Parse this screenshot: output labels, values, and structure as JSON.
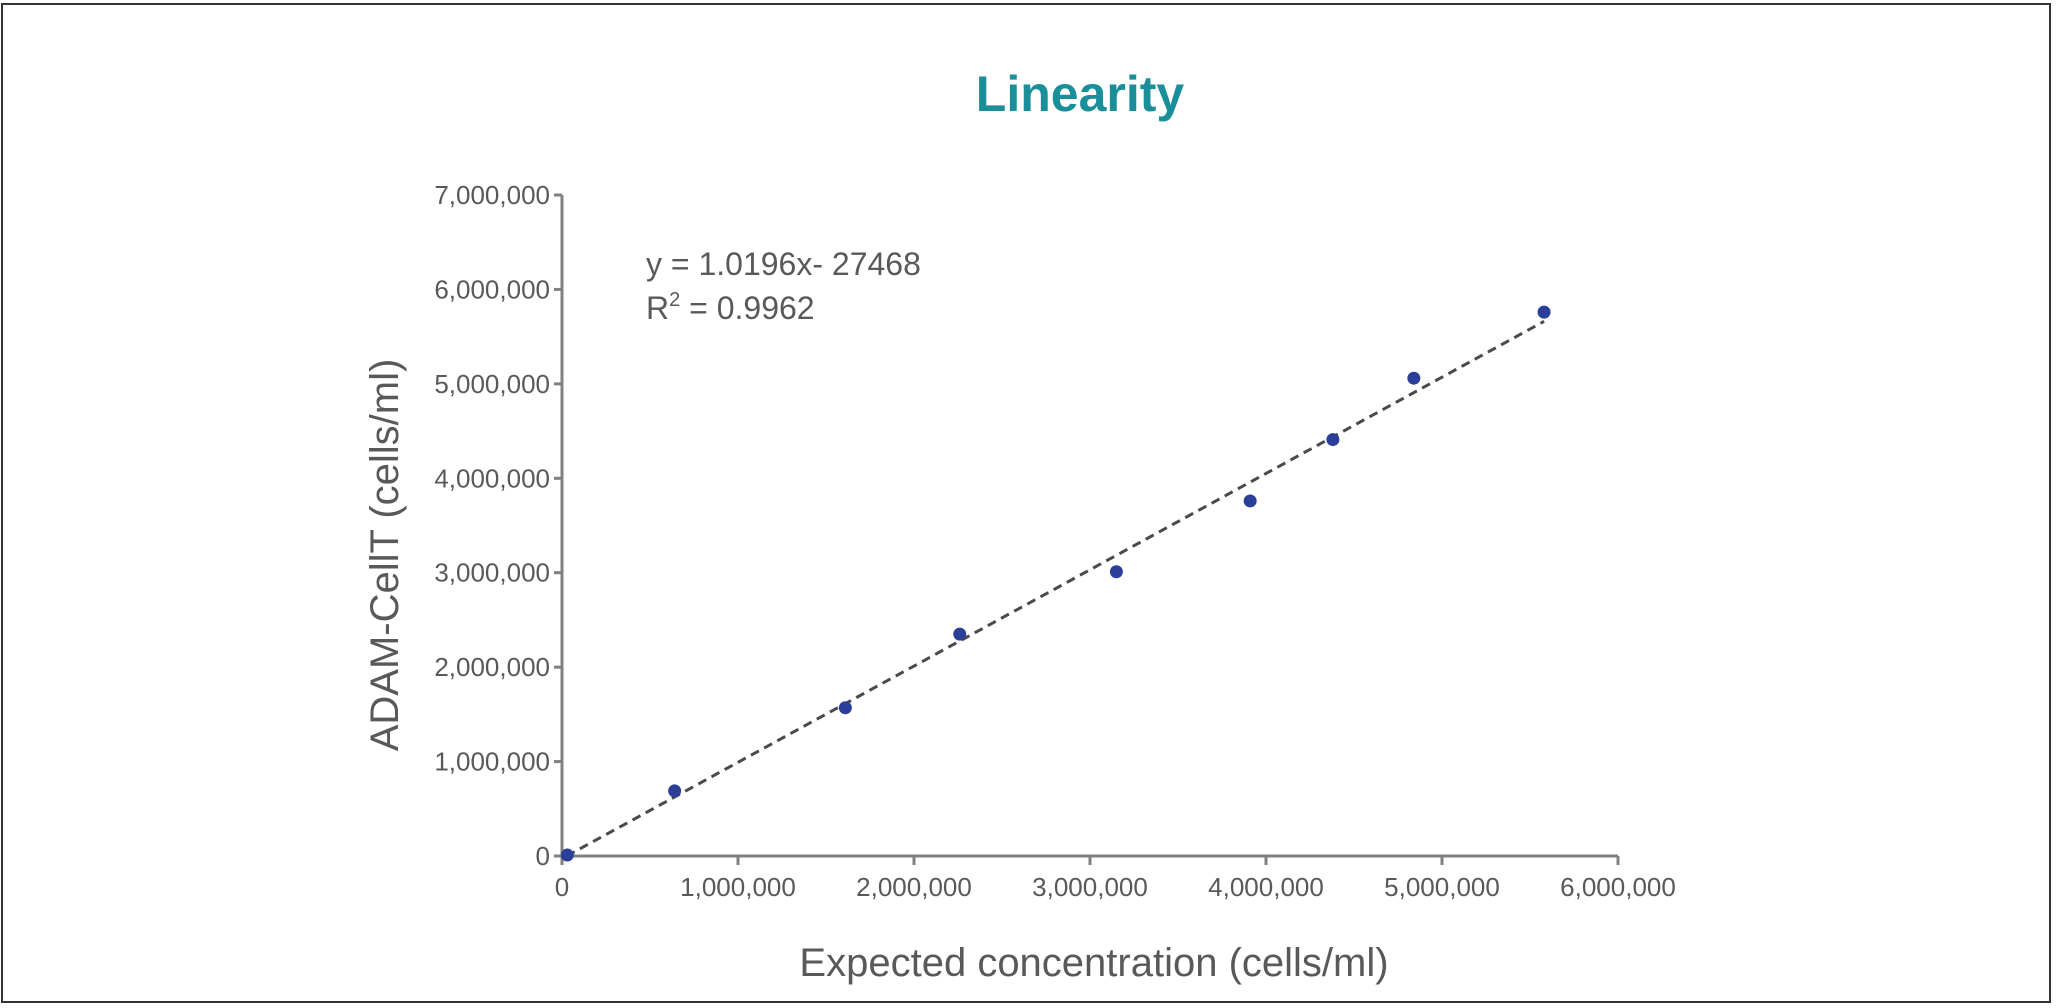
{
  "chart_data": {
    "type": "scatter",
    "title": "Linearity",
    "xlabel": "Expected concentration (cells/ml)",
    "ylabel": "ADAM-CellT (cells/ml)",
    "xlim": [
      0,
      6000000
    ],
    "ylim": [
      0,
      7000000
    ],
    "x_ticks": [
      0,
      1000000,
      2000000,
      3000000,
      4000000,
      5000000,
      6000000
    ],
    "x_tick_labels": [
      "0",
      "1,000,000",
      "2,000,000",
      "3,000,000",
      "4,000,000",
      "5,000,000",
      "6,000,000"
    ],
    "y_ticks": [
      0,
      1000000,
      2000000,
      3000000,
      4000000,
      5000000,
      6000000,
      7000000
    ],
    "y_tick_labels": [
      "0",
      "1,000,000",
      "2,000,000",
      "3,000,000",
      "4,000,000",
      "5,000,000",
      "6,000,000",
      "7,000,000"
    ],
    "grid": false,
    "points": [
      {
        "x": 30000,
        "y": 10000
      },
      {
        "x": 640000,
        "y": 690000
      },
      {
        "x": 1610000,
        "y": 1570000
      },
      {
        "x": 2260000,
        "y": 2350000
      },
      {
        "x": 3150000,
        "y": 3010000
      },
      {
        "x": 3910000,
        "y": 3760000
      },
      {
        "x": 4380000,
        "y": 4410000
      },
      {
        "x": 4840000,
        "y": 5060000
      },
      {
        "x": 5580000,
        "y": 5760000
      }
    ],
    "trendline": {
      "style": "dashed",
      "slope": 1.0196,
      "intercept": -27468,
      "x_range": [
        0,
        5580000
      ],
      "equation_label": "y = 1.0196x- 27468",
      "r2_label": "R",
      "r2_superscript": "2",
      "r2_value_label": " = 0.9962"
    },
    "colors": {
      "title": "#1b8f99",
      "points": "#2b3f99",
      "trendline": "#4a4a4a",
      "axis": "#808080",
      "text": "#595959"
    }
  }
}
